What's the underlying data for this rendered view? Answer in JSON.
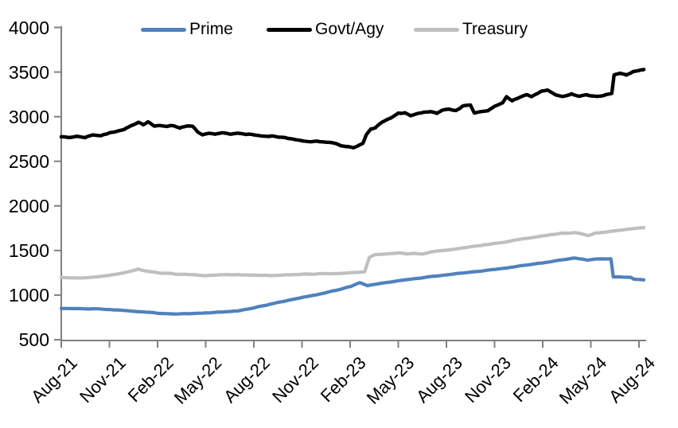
{
  "chart_data": {
    "type": "line",
    "title": "",
    "x_unit": "months since Aug-2021 (t=0 is Aug-21, t=36 is Aug-24)",
    "x_tick_labels": [
      "Aug-21",
      "Nov-21",
      "Feb-22",
      "May-22",
      "Aug-22",
      "Nov-22",
      "Feb-23",
      "May-23",
      "Aug-23",
      "Nov-23",
      "Feb-24",
      "May-24",
      "Aug-24"
    ],
    "y_ticks": [
      500,
      1000,
      1500,
      2000,
      2500,
      3000,
      3500,
      4000
    ],
    "ylim": [
      500,
      4000
    ],
    "grid": false,
    "legend_position": "top",
    "axis_color": "#808080",
    "text_color": "#000000",
    "background_color": "#FFFFFF",
    "series": [
      {
        "name": "Prime",
        "color": "#4F81BD",
        "points": [
          [
            0,
            850
          ],
          [
            1,
            848
          ],
          [
            2,
            846
          ],
          [
            3,
            840
          ],
          [
            4,
            828
          ],
          [
            5,
            812
          ],
          [
            6,
            798
          ],
          [
            7,
            790
          ],
          [
            8,
            792
          ],
          [
            9,
            800
          ],
          [
            10,
            810
          ],
          [
            11,
            822
          ],
          [
            12,
            858
          ],
          [
            13,
            898
          ],
          [
            14,
            935
          ],
          [
            15,
            972
          ],
          [
            16,
            1008
          ],
          [
            17,
            1048
          ],
          [
            18,
            1095
          ],
          [
            18.6,
            1140
          ],
          [
            19.1,
            1105
          ],
          [
            20,
            1135
          ],
          [
            21,
            1160
          ],
          [
            22,
            1185
          ],
          [
            23,
            1205
          ],
          [
            24,
            1228
          ],
          [
            25,
            1245
          ],
          [
            26,
            1265
          ],
          [
            27,
            1288
          ],
          [
            28,
            1312
          ],
          [
            29,
            1338
          ],
          [
            30,
            1362
          ],
          [
            31,
            1390
          ],
          [
            32,
            1415
          ],
          [
            32.7,
            1393
          ],
          [
            33.4,
            1403
          ],
          [
            34.1,
            1406
          ],
          [
            34.25,
            1405
          ],
          [
            34.4,
            1205
          ],
          [
            35.2,
            1202
          ],
          [
            35.5,
            1198
          ],
          [
            35.65,
            1178
          ],
          [
            36.3,
            1172
          ]
        ]
      },
      {
        "name": "Govt/Agy",
        "color": "#000000",
        "points": [
          [
            0,
            2775
          ],
          [
            0.5,
            2768
          ],
          [
            1,
            2782
          ],
          [
            1.5,
            2770
          ],
          [
            2,
            2795
          ],
          [
            2.5,
            2788
          ],
          [
            3,
            2820
          ],
          [
            3.5,
            2838
          ],
          [
            4,
            2862
          ],
          [
            4.4,
            2900
          ],
          [
            4.8,
            2938
          ],
          [
            5.1,
            2912
          ],
          [
            5.4,
            2940
          ],
          [
            5.8,
            2890
          ],
          [
            6.2,
            2905
          ],
          [
            6.6,
            2888
          ],
          [
            7,
            2898
          ],
          [
            7.4,
            2872
          ],
          [
            7.8,
            2895
          ],
          [
            8.2,
            2885
          ],
          [
            8.5,
            2830
          ],
          [
            8.8,
            2795
          ],
          [
            9.2,
            2812
          ],
          [
            9.6,
            2800
          ],
          [
            10,
            2815
          ],
          [
            10.5,
            2806
          ],
          [
            11,
            2812
          ],
          [
            11.5,
            2800
          ],
          [
            12,
            2795
          ],
          [
            12.5,
            2788
          ],
          [
            13,
            2782
          ],
          [
            13.5,
            2772
          ],
          [
            14,
            2768
          ],
          [
            14.5,
            2745
          ],
          [
            15,
            2730
          ],
          [
            15.5,
            2720
          ],
          [
            16,
            2726
          ],
          [
            16.5,
            2712
          ],
          [
            17,
            2710
          ],
          [
            17.4,
            2680
          ],
          [
            17.8,
            2668
          ],
          [
            18.2,
            2652
          ],
          [
            18.5,
            2672
          ],
          [
            18.8,
            2700
          ],
          [
            19,
            2790
          ],
          [
            19.3,
            2862
          ],
          [
            19.6,
            2880
          ],
          [
            20,
            2942
          ],
          [
            20.5,
            2975
          ],
          [
            21,
            3040
          ],
          [
            21.4,
            3045
          ],
          [
            21.8,
            3005
          ],
          [
            22.2,
            3028
          ],
          [
            22.6,
            3052
          ],
          [
            23,
            3060
          ],
          [
            23.4,
            3038
          ],
          [
            23.8,
            3078
          ],
          [
            24.2,
            3080
          ],
          [
            24.6,
            3068
          ],
          [
            25,
            3118
          ],
          [
            25.5,
            3128
          ],
          [
            25.75,
            3040
          ],
          [
            26.2,
            3058
          ],
          [
            26.6,
            3070
          ],
          [
            27,
            3118
          ],
          [
            27.5,
            3150
          ],
          [
            27.75,
            3225
          ],
          [
            28.1,
            3180
          ],
          [
            28.5,
            3212
          ],
          [
            29,
            3242
          ],
          [
            29.3,
            3218
          ],
          [
            29.9,
            3282
          ],
          [
            30.3,
            3298
          ],
          [
            30.8,
            3242
          ],
          [
            31.3,
            3228
          ],
          [
            31.8,
            3252
          ],
          [
            32.3,
            3232
          ],
          [
            32.8,
            3238
          ],
          [
            33.4,
            3232
          ],
          [
            33.9,
            3242
          ],
          [
            34.3,
            3255
          ],
          [
            34.45,
            3468
          ],
          [
            34.8,
            3485
          ],
          [
            35.2,
            3468
          ],
          [
            35.6,
            3502
          ],
          [
            36,
            3520
          ],
          [
            36.3,
            3528
          ]
        ]
      },
      {
        "name": "Treasury",
        "color": "#BFBFBF",
        "points": [
          [
            0,
            1196
          ],
          [
            1,
            1192
          ],
          [
            2,
            1200
          ],
          [
            3,
            1222
          ],
          [
            4,
            1252
          ],
          [
            4.8,
            1292
          ],
          [
            5.5,
            1262
          ],
          [
            6,
            1250
          ],
          [
            7,
            1238
          ],
          [
            8,
            1228
          ],
          [
            9,
            1218
          ],
          [
            10,
            1226
          ],
          [
            11,
            1228
          ],
          [
            12,
            1222
          ],
          [
            13,
            1220
          ],
          [
            14,
            1226
          ],
          [
            15,
            1232
          ],
          [
            16,
            1238
          ],
          [
            17,
            1242
          ],
          [
            18,
            1250
          ],
          [
            18.9,
            1262
          ],
          [
            19.2,
            1425
          ],
          [
            19.5,
            1450
          ],
          [
            20,
            1458
          ],
          [
            21,
            1472
          ],
          [
            21.5,
            1460
          ],
          [
            22,
            1468
          ],
          [
            22.5,
            1458
          ],
          [
            23,
            1482
          ],
          [
            24,
            1505
          ],
          [
            25,
            1528
          ],
          [
            26,
            1552
          ],
          [
            27,
            1578
          ],
          [
            28,
            1605
          ],
          [
            29,
            1635
          ],
          [
            30,
            1662
          ],
          [
            30.6,
            1678
          ],
          [
            31,
            1688
          ],
          [
            31.6,
            1696
          ],
          [
            32,
            1700
          ],
          [
            32.85,
            1668
          ],
          [
            33.3,
            1696
          ],
          [
            34,
            1706
          ],
          [
            35,
            1730
          ],
          [
            35.6,
            1746
          ],
          [
            36.3,
            1758
          ]
        ]
      }
    ]
  }
}
